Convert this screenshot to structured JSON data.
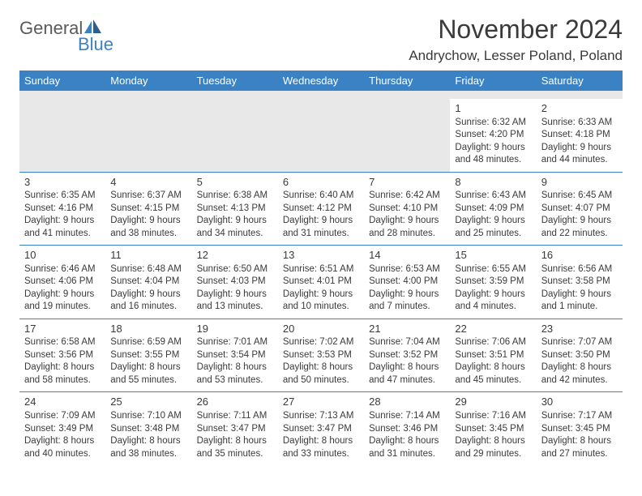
{
  "brand": {
    "word1": "General",
    "word2": "Blue",
    "accent_color": "#3b82c4",
    "text_color": "#5a5a5a"
  },
  "title": "November 2024",
  "location": "Andrychow, Lesser Poland, Poland",
  "colors": {
    "header_bg": "#3b82c4",
    "header_text": "#ffffff",
    "body_text": "#3a3a3a",
    "empty_bg": "#e8e8e8",
    "rule": "#3b82c4",
    "page_bg": "#ffffff"
  },
  "day_headers": [
    "Sunday",
    "Monday",
    "Tuesday",
    "Wednesday",
    "Thursday",
    "Friday",
    "Saturday"
  ],
  "weeks": [
    [
      null,
      null,
      null,
      null,
      null,
      {
        "n": "1",
        "sunrise": "Sunrise: 6:32 AM",
        "sunset": "Sunset: 4:20 PM",
        "day1": "Daylight: 9 hours",
        "day2": "and 48 minutes."
      },
      {
        "n": "2",
        "sunrise": "Sunrise: 6:33 AM",
        "sunset": "Sunset: 4:18 PM",
        "day1": "Daylight: 9 hours",
        "day2": "and 44 minutes."
      }
    ],
    [
      {
        "n": "3",
        "sunrise": "Sunrise: 6:35 AM",
        "sunset": "Sunset: 4:16 PM",
        "day1": "Daylight: 9 hours",
        "day2": "and 41 minutes."
      },
      {
        "n": "4",
        "sunrise": "Sunrise: 6:37 AM",
        "sunset": "Sunset: 4:15 PM",
        "day1": "Daylight: 9 hours",
        "day2": "and 38 minutes."
      },
      {
        "n": "5",
        "sunrise": "Sunrise: 6:38 AM",
        "sunset": "Sunset: 4:13 PM",
        "day1": "Daylight: 9 hours",
        "day2": "and 34 minutes."
      },
      {
        "n": "6",
        "sunrise": "Sunrise: 6:40 AM",
        "sunset": "Sunset: 4:12 PM",
        "day1": "Daylight: 9 hours",
        "day2": "and 31 minutes."
      },
      {
        "n": "7",
        "sunrise": "Sunrise: 6:42 AM",
        "sunset": "Sunset: 4:10 PM",
        "day1": "Daylight: 9 hours",
        "day2": "and 28 minutes."
      },
      {
        "n": "8",
        "sunrise": "Sunrise: 6:43 AM",
        "sunset": "Sunset: 4:09 PM",
        "day1": "Daylight: 9 hours",
        "day2": "and 25 minutes."
      },
      {
        "n": "9",
        "sunrise": "Sunrise: 6:45 AM",
        "sunset": "Sunset: 4:07 PM",
        "day1": "Daylight: 9 hours",
        "day2": "and 22 minutes."
      }
    ],
    [
      {
        "n": "10",
        "sunrise": "Sunrise: 6:46 AM",
        "sunset": "Sunset: 4:06 PM",
        "day1": "Daylight: 9 hours",
        "day2": "and 19 minutes."
      },
      {
        "n": "11",
        "sunrise": "Sunrise: 6:48 AM",
        "sunset": "Sunset: 4:04 PM",
        "day1": "Daylight: 9 hours",
        "day2": "and 16 minutes."
      },
      {
        "n": "12",
        "sunrise": "Sunrise: 6:50 AM",
        "sunset": "Sunset: 4:03 PM",
        "day1": "Daylight: 9 hours",
        "day2": "and 13 minutes."
      },
      {
        "n": "13",
        "sunrise": "Sunrise: 6:51 AM",
        "sunset": "Sunset: 4:01 PM",
        "day1": "Daylight: 9 hours",
        "day2": "and 10 minutes."
      },
      {
        "n": "14",
        "sunrise": "Sunrise: 6:53 AM",
        "sunset": "Sunset: 4:00 PM",
        "day1": "Daylight: 9 hours",
        "day2": "and 7 minutes."
      },
      {
        "n": "15",
        "sunrise": "Sunrise: 6:55 AM",
        "sunset": "Sunset: 3:59 PM",
        "day1": "Daylight: 9 hours",
        "day2": "and 4 minutes."
      },
      {
        "n": "16",
        "sunrise": "Sunrise: 6:56 AM",
        "sunset": "Sunset: 3:58 PM",
        "day1": "Daylight: 9 hours",
        "day2": "and 1 minute."
      }
    ],
    [
      {
        "n": "17",
        "sunrise": "Sunrise: 6:58 AM",
        "sunset": "Sunset: 3:56 PM",
        "day1": "Daylight: 8 hours",
        "day2": "and 58 minutes."
      },
      {
        "n": "18",
        "sunrise": "Sunrise: 6:59 AM",
        "sunset": "Sunset: 3:55 PM",
        "day1": "Daylight: 8 hours",
        "day2": "and 55 minutes."
      },
      {
        "n": "19",
        "sunrise": "Sunrise: 7:01 AM",
        "sunset": "Sunset: 3:54 PM",
        "day1": "Daylight: 8 hours",
        "day2": "and 53 minutes."
      },
      {
        "n": "20",
        "sunrise": "Sunrise: 7:02 AM",
        "sunset": "Sunset: 3:53 PM",
        "day1": "Daylight: 8 hours",
        "day2": "and 50 minutes."
      },
      {
        "n": "21",
        "sunrise": "Sunrise: 7:04 AM",
        "sunset": "Sunset: 3:52 PM",
        "day1": "Daylight: 8 hours",
        "day2": "and 47 minutes."
      },
      {
        "n": "22",
        "sunrise": "Sunrise: 7:06 AM",
        "sunset": "Sunset: 3:51 PM",
        "day1": "Daylight: 8 hours",
        "day2": "and 45 minutes."
      },
      {
        "n": "23",
        "sunrise": "Sunrise: 7:07 AM",
        "sunset": "Sunset: 3:50 PM",
        "day1": "Daylight: 8 hours",
        "day2": "and 42 minutes."
      }
    ],
    [
      {
        "n": "24",
        "sunrise": "Sunrise: 7:09 AM",
        "sunset": "Sunset: 3:49 PM",
        "day1": "Daylight: 8 hours",
        "day2": "and 40 minutes."
      },
      {
        "n": "25",
        "sunrise": "Sunrise: 7:10 AM",
        "sunset": "Sunset: 3:48 PM",
        "day1": "Daylight: 8 hours",
        "day2": "and 38 minutes."
      },
      {
        "n": "26",
        "sunrise": "Sunrise: 7:11 AM",
        "sunset": "Sunset: 3:47 PM",
        "day1": "Daylight: 8 hours",
        "day2": "and 35 minutes."
      },
      {
        "n": "27",
        "sunrise": "Sunrise: 7:13 AM",
        "sunset": "Sunset: 3:47 PM",
        "day1": "Daylight: 8 hours",
        "day2": "and 33 minutes."
      },
      {
        "n": "28",
        "sunrise": "Sunrise: 7:14 AM",
        "sunset": "Sunset: 3:46 PM",
        "day1": "Daylight: 8 hours",
        "day2": "and 31 minutes."
      },
      {
        "n": "29",
        "sunrise": "Sunrise: 7:16 AM",
        "sunset": "Sunset: 3:45 PM",
        "day1": "Daylight: 8 hours",
        "day2": "and 29 minutes."
      },
      {
        "n": "30",
        "sunrise": "Sunrise: 7:17 AM",
        "sunset": "Sunset: 3:45 PM",
        "day1": "Daylight: 8 hours",
        "day2": "and 27 minutes."
      }
    ]
  ]
}
